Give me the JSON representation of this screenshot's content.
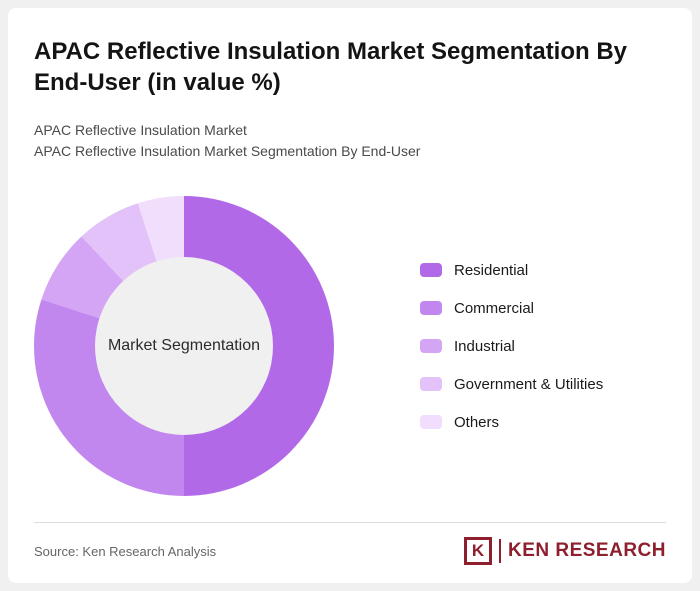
{
  "header": {
    "title": "APAC Reflective Insulation Market Segmentation By End-User (in value %)",
    "subtitle1": "APAC Reflective Insulation Market",
    "subtitle2": "APAC Reflective Insulation Market Segmentation By End-User"
  },
  "chart_data": {
    "type": "pie",
    "donut": true,
    "title": "APAC Reflective Insulation Market Segmentation By End-User (in value %)",
    "center_label": "Market Segmentation",
    "categories": [
      "Residential",
      "Commercial",
      "Industrial",
      "Government & Utilities",
      "Others"
    ],
    "values": [
      50,
      30,
      8,
      7,
      5
    ],
    "unit": "value %",
    "colors": [
      "#b269e8",
      "#c287ef",
      "#d4a5f4",
      "#e2c2f9",
      "#f0defc"
    ],
    "legend_position": "right",
    "start_angle_deg": 0,
    "direction": "clockwise",
    "hole_color": "#f0f0f0"
  },
  "footer": {
    "source": "Source: Ken Research Analysis",
    "logo": {
      "icon_letter": "K",
      "brand": "KEN RESEARCH",
      "color": "#8e1f2e"
    }
  }
}
